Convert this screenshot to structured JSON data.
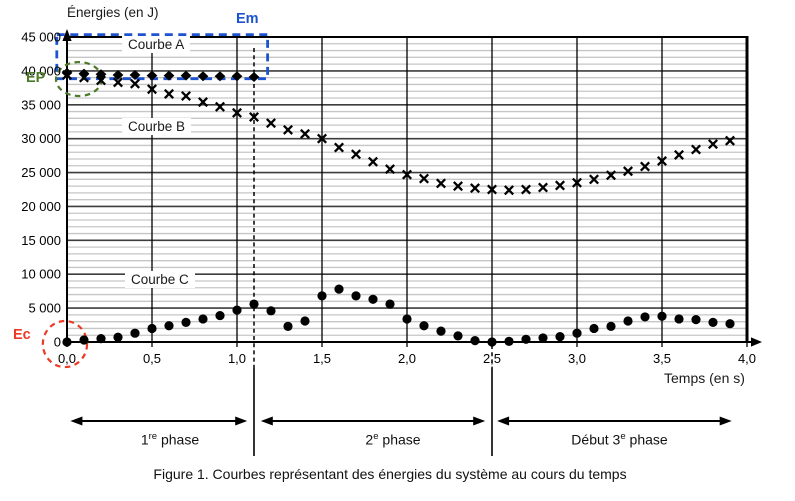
{
  "figure": {
    "y_axis_title": "Énergies (en J)",
    "x_axis_title": "Temps (en s)",
    "caption": "Figure 1. Courbes représentant des énergies du système au cours du temps",
    "em_label": "Em",
    "ep_label": "EP",
    "ec_label": "Ec",
    "curve_a_label": "Courbe A",
    "curve_b_label": "Courbe B",
    "curve_c_label": "Courbe C",
    "phases": [
      {
        "pre": "1",
        "sup": "re",
        "rest": " phase"
      },
      {
        "pre": "2",
        "sup": "e",
        "rest": " phase"
      },
      {
        "pre": "Début 3",
        "sup": "e",
        "rest": " phase"
      }
    ]
  },
  "chart_data": {
    "type": "scatter",
    "title": "",
    "xlabel": "Temps (en s)",
    "ylabel": "Énergies (en J)",
    "xlim": [
      0,
      4.0
    ],
    "ylim": [
      0,
      45000
    ],
    "grid": true,
    "y_minor_step": 1000,
    "x_ticks": [
      0,
      0.5,
      1.0,
      1.5,
      2.0,
      2.5,
      3.0,
      3.5,
      4.0
    ],
    "x_tick_labels": [
      "0,0",
      "0,5",
      "1,0",
      "1,5",
      "2,0",
      "2,5",
      "3,0",
      "3,5",
      "4,0"
    ],
    "y_ticks": [
      0,
      5000,
      10000,
      15000,
      20000,
      25000,
      30000,
      35000,
      40000,
      45000
    ],
    "y_tick_labels": [
      "0",
      "5 000",
      "10 000",
      "15 000",
      "20 000",
      "25 000",
      "30 000",
      "35 000",
      "40 000",
      "45 000"
    ],
    "series": [
      {
        "name": "Courbe A",
        "marker": "diamond",
        "color": "#000000",
        "x": [
          0,
          0.1,
          0.2,
          0.3,
          0.4,
          0.5,
          0.6,
          0.7,
          0.8,
          0.9,
          1.0,
          1.1
        ],
        "y": [
          39700,
          39600,
          39500,
          39400,
          39400,
          39300,
          39300,
          39300,
          39200,
          39200,
          39200,
          39100
        ]
      },
      {
        "name": "Courbe B",
        "marker": "x",
        "color": "#000000",
        "x": [
          0,
          0.1,
          0.2,
          0.3,
          0.4,
          0.5,
          0.6,
          0.7,
          0.8,
          0.9,
          1.0,
          1.1,
          1.2,
          1.3,
          1.4,
          1.5,
          1.6,
          1.7,
          1.8,
          1.9,
          2.0,
          2.1,
          2.2,
          2.3,
          2.4,
          2.5,
          2.6,
          2.7,
          2.8,
          2.9,
          3.0,
          3.1,
          3.2,
          3.3,
          3.4,
          3.5,
          3.6,
          3.7,
          3.8,
          3.9
        ],
        "y": [
          39400,
          39000,
          38600,
          38300,
          38100,
          37300,
          36600,
          36300,
          35400,
          34700,
          33800,
          33200,
          32300,
          31300,
          30700,
          30000,
          28700,
          27700,
          26600,
          25500,
          24700,
          24100,
          23400,
          23000,
          22700,
          22500,
          22400,
          22500,
          22800,
          23100,
          23500,
          24000,
          24600,
          25200,
          25900,
          26700,
          27600,
          28400,
          29200,
          29700
        ]
      },
      {
        "name": "Courbe C",
        "marker": "dot",
        "color": "#000000",
        "x": [
          0,
          0.1,
          0.2,
          0.3,
          0.4,
          0.5,
          0.6,
          0.7,
          0.8,
          0.9,
          1.0,
          1.1,
          1.2,
          1.3,
          1.4,
          1.5,
          1.6,
          1.7,
          1.8,
          1.9,
          2.0,
          2.1,
          2.2,
          2.3,
          2.4,
          2.5,
          2.6,
          2.7,
          2.8,
          2.9,
          3.0,
          3.1,
          3.2,
          3.3,
          3.4,
          3.5,
          3.6,
          3.7,
          3.8,
          3.9
        ],
        "y": [
          0,
          300,
          500,
          700,
          1300,
          2000,
          2400,
          2900,
          3400,
          3900,
          4700,
          5600,
          4600,
          2300,
          3100,
          6800,
          7800,
          6800,
          6300,
          5600,
          3400,
          2400,
          1600,
          900,
          200,
          0,
          100,
          400,
          600,
          800,
          1300,
          2000,
          2300,
          3100,
          3700,
          3800,
          3400,
          3300,
          2900,
          2700
        ]
      }
    ],
    "annotations": {
      "dashed_vline_t": 1.1,
      "dashed_vline2_t": 2.5,
      "em_box": {
        "x": [
          -0.06,
          1.18
        ],
        "y": [
          38850,
          45350
        ],
        "color": "#1E53CF"
      },
      "ep_ellipse": {
        "cx_t": 0.07,
        "cy_e": 38800,
        "rx_t": 0.135,
        "ry_e": 2500,
        "color": "#4C7A28"
      },
      "ec_ellipse": {
        "cx_t": -0.012,
        "cy_e": -300,
        "rx_t": 0.13,
        "ry_e": 3400,
        "color": "#EC3A25"
      },
      "phase_arrows_t": [
        [
          0.02,
          1.06
        ],
        [
          1.14,
          2.46
        ],
        [
          2.53,
          3.91
        ]
      ],
      "phase_separators_t": [
        1.1,
        2.5
      ]
    }
  }
}
